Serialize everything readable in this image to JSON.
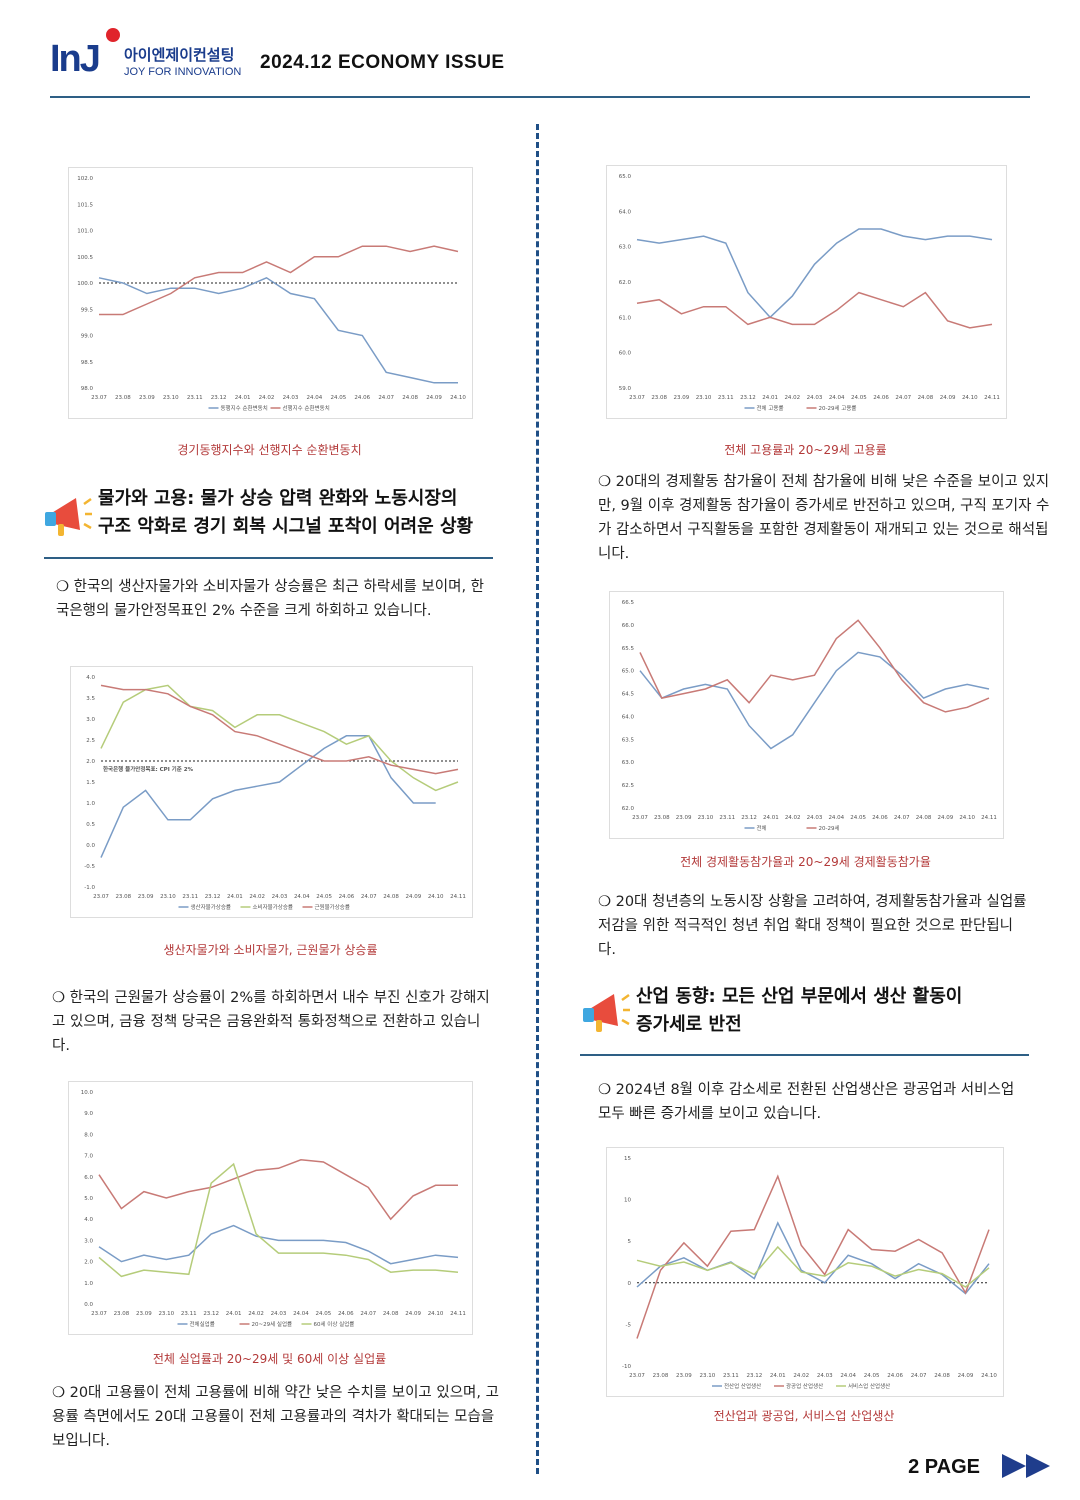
{
  "header": {
    "logo_mark": "InJ",
    "logo_korean": "아이엔제이컨설팅",
    "logo_tagline": "JOY FOR INNOVATION",
    "issue_title": "2024.12 ECONOMY ISSUE"
  },
  "colors": {
    "blue": "#7a9cc6",
    "red": "#c87a76",
    "green": "#b5cc7a",
    "accent": "#2e5f85",
    "caption": "#b33a3a"
  },
  "left": {
    "section1_title_line1": "물가와 고용: 물가 상승 압력 완화와 노동시장의",
    "section1_title_line2": "구조 악화로 경기 회복 시그널 포착이 어려운 상황",
    "para1": "❍ 한국의 생산자물가와 소비자물가 상승률은 최근 하락세를 보이며, 한국은행의 물가안정목표인 2% 수준을 크게 하회하고 있습니다.",
    "para2": "❍ 한국의 근원물가 상승률이 2%를 하회하면서 내수 부진 신호가 강해지고 있으며, 금융 정책 당국은 금융완화적 통화정책으로 전환하고 있습니다.",
    "para3": "❍ 20대 고용률이 전체 고용률에 비해 약간 낮은 수치를 보이고 있으며, 고용률 측면에서도 20대 고용률이 전체 고용률과의 격차가 확대되는 모습을 보입니다.",
    "caption1": "경기동행지수와 선행지수 순환변동치",
    "caption2": "생산자물가와 소비자물가, 근원물가 상승률",
    "caption3": "전체 실업률과 20~29세 및 60세 이상 실업률"
  },
  "right": {
    "para1": "❍ 20대의 경제활동 참가율이 전체 참가율에 비해 낮은 수준을 보이고 있지만, 9월 이후 경제활동 참가율이 증가세로 반전하고 있으며, 구직 포기자 수가 감소하면서 구직활동을 포함한 경제활동이 재개되고 있는 것으로 해석됩니다.",
    "para2": "❍ 20대 청년층의 노동시장 상황을 고려하여, 경제활동참가율과 실업률 저감을 위한 적극적인 청년 취업 확대 정책이 필요한 것으로 판단됩니다.",
    "section2_title_line1": "산업 동향: 모든 산업 부문에서 생산 활동이",
    "section2_title_line2": "증가세로 반전",
    "para3": "❍ 2024년 8월 이후 감소세로 전환된 산업생산은 광공업과 서비스업 모두 빠른 증가세를 보이고 있습니다.",
    "caption1": "전체 고용률과 20~29세 고용률",
    "caption2": "전체 경제활동참가율과 20~29세 경제활동참가율",
    "caption3": "전산업과 광공업, 서비스업 산업생산"
  },
  "footer": {
    "page": "2 PAGE"
  },
  "chart_data": [
    {
      "id": "c1",
      "type": "line",
      "x": [
        "23.07",
        "23.08",
        "23.09",
        "23.10",
        "23.11",
        "23.12",
        "24.01",
        "24.02",
        "24.03",
        "24.04",
        "24.05",
        "24.06",
        "24.07",
        "24.08",
        "24.09",
        "24.10"
      ],
      "ylim": [
        98.0,
        102.0
      ],
      "yticks": [
        "98.0",
        "98.5",
        "99.0",
        "99.5",
        "100.0",
        "100.5",
        "101.0",
        "101.5",
        "102.0"
      ],
      "ref": 100.0,
      "series": [
        {
          "name": "동행지수 순환변동치",
          "color": "#7a9cc6",
          "values": [
            100.1,
            100.0,
            99.8,
            99.9,
            99.9,
            99.8,
            99.9,
            100.1,
            99.8,
            99.7,
            99.1,
            99.0,
            98.3,
            98.2,
            98.1,
            98.1
          ]
        },
        {
          "name": "선행지수 순환변동치",
          "color": "#c87a76",
          "values": [
            99.4,
            99.4,
            99.6,
            99.8,
            100.1,
            100.2,
            100.2,
            100.4,
            100.2,
            100.5,
            100.5,
            100.7,
            100.7,
            100.6,
            100.7,
            100.6
          ]
        }
      ]
    },
    {
      "id": "c2",
      "type": "line",
      "x": [
        "23.07",
        "23.08",
        "23.09",
        "23.10",
        "23.11",
        "23.12",
        "24.01",
        "24.02",
        "24.03",
        "24.04",
        "24.05",
        "24.06",
        "24.07",
        "24.08",
        "24.09",
        "24.10",
        "24.11"
      ],
      "ylim": [
        -1.0,
        4.0
      ],
      "yticks": [
        "-1.0",
        "-0.5",
        "0.0",
        "0.5",
        "1.0",
        "1.5",
        "2.0",
        "2.5",
        "3.0",
        "3.5",
        "4.0"
      ],
      "ref": 2.0,
      "ref_label": "한국은행 물가안정목표: CPI 기준 2%",
      "series": [
        {
          "name": "생산자물가상승률",
          "color": "#7a9cc6",
          "values": [
            -0.3,
            0.9,
            1.3,
            0.6,
            0.6,
            1.1,
            1.3,
            1.4,
            1.5,
            1.9,
            2.3,
            2.6,
            2.6,
            1.6,
            1.0,
            1.0,
            null
          ]
        },
        {
          "name": "소비자물가상승률",
          "color": "#b5cc7a",
          "values": [
            2.3,
            3.4,
            3.7,
            3.8,
            3.3,
            3.2,
            2.8,
            3.1,
            3.1,
            2.9,
            2.7,
            2.4,
            2.6,
            2.0,
            1.6,
            1.3,
            1.5
          ]
        },
        {
          "name": "근원물가상승률",
          "color": "#c87a76",
          "values": [
            3.8,
            3.7,
            3.7,
            3.6,
            3.3,
            3.1,
            2.7,
            2.6,
            2.4,
            2.2,
            2.0,
            2.0,
            2.1,
            1.9,
            1.8,
            1.7,
            1.8
          ]
        }
      ]
    },
    {
      "id": "c3",
      "type": "line",
      "x": [
        "23.07",
        "23.08",
        "23.09",
        "23.10",
        "23.11",
        "23.12",
        "24.01",
        "24.02",
        "24.03",
        "24.04",
        "24.05",
        "24.06",
        "24.07",
        "24.08",
        "24.09",
        "24.10",
        "24.11"
      ],
      "ylim": [
        0.0,
        10.0
      ],
      "yticks": [
        "0.0",
        "1.0",
        "2.0",
        "3.0",
        "4.0",
        "5.0",
        "6.0",
        "7.0",
        "8.0",
        "9.0",
        "10.0"
      ],
      "series": [
        {
          "name": "전체실업률",
          "color": "#7a9cc6",
          "values": [
            2.7,
            2.0,
            2.3,
            2.1,
            2.3,
            3.3,
            3.7,
            3.2,
            3.0,
            3.0,
            3.0,
            2.9,
            2.5,
            1.9,
            2.1,
            2.3,
            2.2
          ]
        },
        {
          "name": "20~29세 실업률",
          "color": "#c87a76",
          "values": [
            6.1,
            4.5,
            5.3,
            5.0,
            5.3,
            5.5,
            5.9,
            6.3,
            6.4,
            6.8,
            6.7,
            6.1,
            5.5,
            4.0,
            5.1,
            5.6,
            5.6
          ]
        },
        {
          "name": "60세 이상 실업률",
          "color": "#b5cc7a",
          "values": [
            2.2,
            1.3,
            1.6,
            1.5,
            1.4,
            5.7,
            6.6,
            3.3,
            2.4,
            2.4,
            2.4,
            2.3,
            2.1,
            1.5,
            1.6,
            1.6,
            1.5
          ]
        }
      ]
    },
    {
      "id": "c4",
      "type": "line",
      "x": [
        "23.07",
        "23.08",
        "23.09",
        "23.10",
        "23.11",
        "23.12",
        "24.01",
        "24.02",
        "24.03",
        "24.04",
        "24.05",
        "24.06",
        "24.07",
        "24.08",
        "24.09",
        "24.10",
        "24.11"
      ],
      "ylim": [
        59.0,
        65.0
      ],
      "yticks": [
        "59.0",
        "60.0",
        "61.0",
        "62.0",
        "63.0",
        "64.0",
        "65.0"
      ],
      "series": [
        {
          "name": "전체 고용률",
          "color": "#7a9cc6",
          "values": [
            63.2,
            63.1,
            63.2,
            63.3,
            63.1,
            61.7,
            61.0,
            61.6,
            62.5,
            63.1,
            63.5,
            63.5,
            63.3,
            63.2,
            63.3,
            63.3,
            63.2
          ]
        },
        {
          "name": "20-29세 고용률",
          "color": "#c87a76",
          "values": [
            61.4,
            61.5,
            61.1,
            61.3,
            61.3,
            60.8,
            61.0,
            60.8,
            60.8,
            61.2,
            61.7,
            61.5,
            61.3,
            61.7,
            60.9,
            60.7,
            60.8
          ]
        }
      ]
    },
    {
      "id": "c5",
      "type": "line",
      "x": [
        "23.07",
        "23.08",
        "23.09",
        "23.10",
        "23.11",
        "23.12",
        "24.01",
        "24.02",
        "24.03",
        "24.04",
        "24.05",
        "24.06",
        "24.07",
        "24.08",
        "24.09",
        "24.10",
        "24.11"
      ],
      "ylim": [
        62.0,
        66.5
      ],
      "yticks": [
        "62.0",
        "62.5",
        "63.0",
        "63.5",
        "64.0",
        "64.5",
        "65.0",
        "65.5",
        "66.0",
        "66.5"
      ],
      "series": [
        {
          "name": "전체",
          "color": "#7a9cc6",
          "values": [
            65.0,
            64.4,
            64.6,
            64.7,
            64.6,
            63.8,
            63.3,
            63.6,
            64.3,
            65.0,
            65.4,
            65.3,
            64.9,
            64.4,
            64.6,
            64.7,
            64.6
          ]
        },
        {
          "name": "20-29세",
          "color": "#c87a76",
          "values": [
            65.4,
            64.4,
            64.5,
            64.6,
            64.8,
            64.3,
            64.9,
            64.8,
            64.9,
            65.7,
            66.1,
            65.5,
            64.8,
            64.3,
            64.1,
            64.2,
            64.4
          ]
        }
      ]
    },
    {
      "id": "c6",
      "type": "line",
      "x": [
        "23.07",
        "23.08",
        "23.09",
        "23.10",
        "23.11",
        "23.12",
        "24.01",
        "24.02",
        "24.03",
        "24.04",
        "24.05",
        "24.06",
        "24.07",
        "24.08",
        "24.09",
        "24.10"
      ],
      "ylim": [
        -10,
        15
      ],
      "yticks": [
        "-10",
        "-5",
        "0",
        "5",
        "10",
        "15"
      ],
      "ref": 0,
      "series": [
        {
          "name": "전산업 산업생산",
          "color": "#7a9cc6",
          "values": [
            -0.5,
            2.0,
            3.0,
            1.5,
            2.5,
            0.5,
            7.2,
            1.5,
            0.0,
            3.3,
            2.3,
            0.5,
            2.3,
            1.0,
            -1.3,
            2.3
          ]
        },
        {
          "name": "광공업 산업생산",
          "color": "#c87a76",
          "values": [
            -6.7,
            1.5,
            4.8,
            2.0,
            6.2,
            6.4,
            12.8,
            4.5,
            1.0,
            6.4,
            4.0,
            3.8,
            5.2,
            3.6,
            -1.2,
            6.4
          ]
        },
        {
          "name": "서비스업 산업생산",
          "color": "#b5cc7a",
          "values": [
            2.7,
            2.0,
            2.5,
            1.5,
            2.4,
            1.0,
            4.3,
            1.3,
            0.8,
            2.4,
            2.0,
            0.8,
            1.6,
            1.1,
            -0.5,
            1.8
          ]
        }
      ]
    }
  ]
}
